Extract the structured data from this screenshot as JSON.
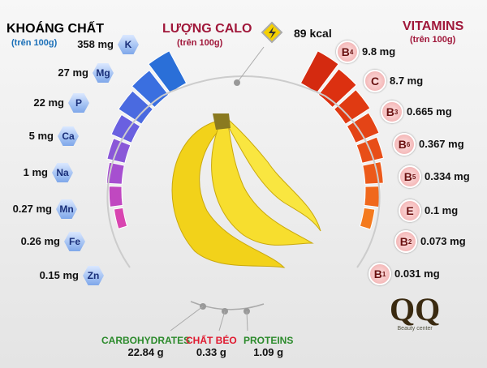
{
  "minerals": {
    "title": "KHOÁNG CHẤT",
    "subtitle": "(trên 100g)",
    "color": "#1a6fb8",
    "items": [
      {
        "symbol": "K",
        "value": "358 mg",
        "level": 1.0
      },
      {
        "symbol": "Mg",
        "value": "27 mg",
        "level": 0.85
      },
      {
        "symbol": "P",
        "value": "22 mg",
        "level": 0.75
      },
      {
        "symbol": "Ca",
        "value": "5 mg",
        "level": 0.6
      },
      {
        "symbol": "Na",
        "value": "1 mg",
        "level": 0.5
      },
      {
        "symbol": "Mn",
        "value": "0.27 mg",
        "level": 0.42
      },
      {
        "symbol": "Fe",
        "value": "0.26 mg",
        "level": 0.35
      },
      {
        "symbol": "Zn",
        "value": "0.15 mg",
        "level": 0.25
      }
    ]
  },
  "calories": {
    "title": "LƯỢNG CALO",
    "subtitle": "(trên 100g)",
    "value": "89 kcal",
    "color": "#a0173a"
  },
  "vitamins": {
    "title": "VITAMINS",
    "subtitle": "(trên 100g)",
    "color": "#a0173a",
    "items": [
      {
        "symbol": "B",
        "index": "4",
        "value": "9.8 mg",
        "level": 1.0
      },
      {
        "symbol": "C",
        "index": "",
        "value": "8.7 mg",
        "level": 0.9
      },
      {
        "symbol": "B",
        "index": "3",
        "value": "0.665 mg",
        "level": 0.8
      },
      {
        "symbol": "B",
        "index": "6",
        "value": "0.367 mg",
        "level": 0.7
      },
      {
        "symbol": "B",
        "index": "5",
        "value": "0.334 mg",
        "level": 0.6
      },
      {
        "symbol": "E",
        "index": "",
        "value": "0.1 mg",
        "level": 0.5
      },
      {
        "symbol": "B",
        "index": "2",
        "value": "0.073 mg",
        "level": 0.4
      },
      {
        "symbol": "B",
        "index": "1",
        "value": "0.031 mg",
        "level": 0.3
      }
    ]
  },
  "macros": [
    {
      "name": "CARBOHYDRATES",
      "value": "22.84 g",
      "color": "#2b8a2b"
    },
    {
      "name": "CHẤT BÉO",
      "value": "0.33 g",
      "color": "#e0182e"
    },
    {
      "name": "PROTEINS",
      "value": "1.09 g",
      "color": "#2b8a2b"
    }
  ],
  "logo": {
    "mark": "QQ",
    "tagline": "Beauty center"
  }
}
